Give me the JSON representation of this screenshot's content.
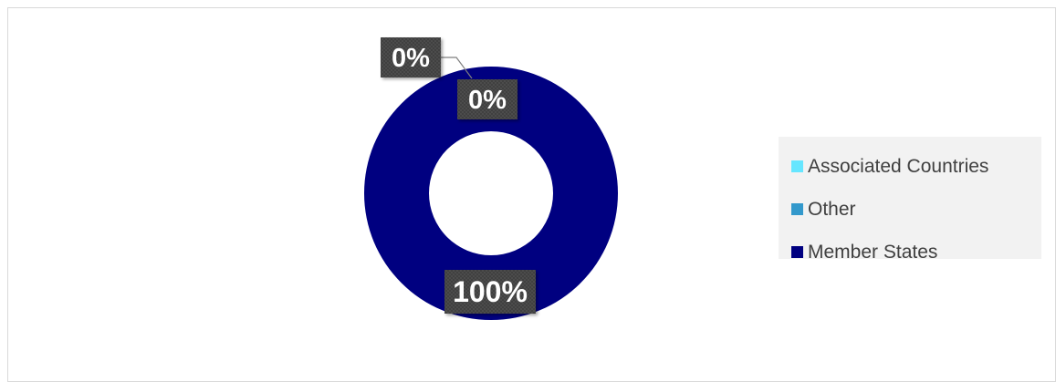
{
  "chart_data": {
    "type": "pie",
    "variant": "doughnut",
    "series": [
      {
        "categories": [
          "Member States",
          "Other",
          "Associated Countries"
        ],
        "values": [
          100,
          0,
          0
        ],
        "data_labels": [
          "100%",
          "0%",
          "0%"
        ],
        "colors": [
          "#000080",
          "#3399CC",
          "#66E6FF"
        ]
      }
    ],
    "legend": {
      "position": "right",
      "entries": [
        {
          "label": "Associated Countries",
          "color": "#66E6FF"
        },
        {
          "label": "Other",
          "color": "#3399CC"
        },
        {
          "label": "Member States",
          "color": "#000080"
        }
      ]
    },
    "label_box_color": "#404040"
  }
}
